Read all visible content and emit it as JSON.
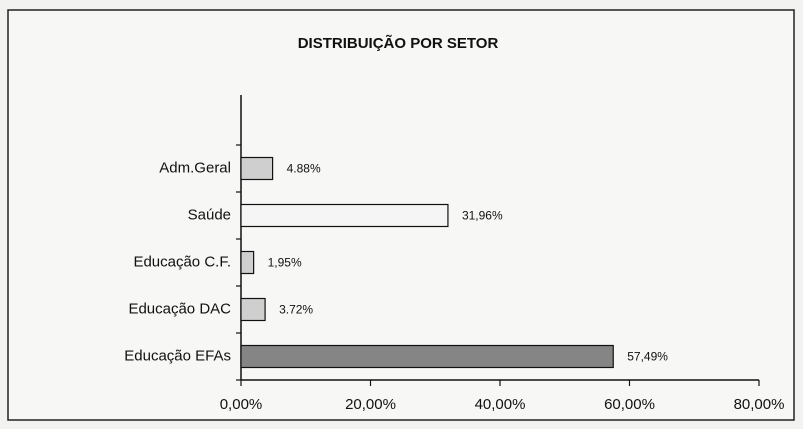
{
  "chart_data": {
    "type": "bar",
    "orientation": "horizontal",
    "title": "DISTRIBUIÇÃO POR SETOR",
    "categories": [
      "Adm.Geral",
      "Saúde",
      "Educação C.F.",
      "Educação DAC",
      "Educação EFAs"
    ],
    "values": [
      4.88,
      31.96,
      1.95,
      3.72,
      57.49
    ],
    "value_labels": [
      "4.88%",
      "31,96%",
      "1,95%",
      "3.72%",
      "57,49%"
    ],
    "colors": [
      "#cfcfcf",
      "#f5f5f5",
      "#cfcfcf",
      "#cfcfcf",
      "#858585"
    ],
    "xlim": [
      0,
      80
    ],
    "xticks": [
      {
        "value": 0,
        "label": "0,00%"
      },
      {
        "value": 20,
        "label": "20,00%"
      },
      {
        "value": 40,
        "label": "40,00%"
      },
      {
        "value": 60,
        "label": "60,00%"
      },
      {
        "value": 80,
        "label": "80,00%"
      }
    ],
    "grid": false
  }
}
